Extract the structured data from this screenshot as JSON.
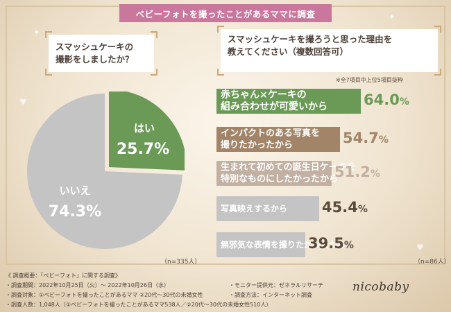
{
  "banner": "ベビーフォトを撮ったことがあるママに調査",
  "q_left": [
    "スマッシュケーキの",
    "撮影をしましたか？"
  ],
  "q_right": [
    "スマッシュケーキを撮ろうと思った理由を",
    "教えてください（複数回答可）"
  ],
  "note": "※全7項目中上位5項目抜粋",
  "colors": {
    "green": "#6a9a56",
    "brown": "#a28468",
    "beige": "#c2b0a2",
    "gray": "#c4c4c4",
    "banner": "#c9779c"
  },
  "chart_data": [
    {
      "type": "pie",
      "title": "スマッシュケーキの撮影をしましたか？",
      "slices": [
        {
          "label": "はい",
          "value": 25.7,
          "display": "25.7%"
        },
        {
          "label": "いいえ",
          "value": 74.3,
          "display": "74.3%"
        }
      ],
      "n": "（n=335人）"
    },
    {
      "type": "bar",
      "title": "スマッシュケーキを撮ろうと思った理由を教えてください（複数回答可）",
      "categories": [
        [
          "赤ちゃん×ケーキの",
          "組み合わせが可愛いから"
        ],
        [
          "インパクトのある写真を",
          "撮りたかったから"
        ],
        [
          "生まれて初めての誕生日ケーキを",
          "特別なものにしたかったから"
        ],
        [
          "写真映えするから"
        ],
        [
          "無邪気な表情を撮りたかったから"
        ]
      ],
      "values": [
        64.0,
        54.7,
        51.2,
        45.4,
        39.5
      ],
      "value_labels": [
        {
          "num": "64.0",
          "pct": "%"
        },
        {
          "num": "54.7",
          "pct": "%"
        },
        {
          "num": "51.2",
          "pct": "%"
        },
        {
          "num": "45.4",
          "pct": "%"
        },
        {
          "num": "39.5",
          "pct": "%"
        }
      ],
      "xlim": [
        0,
        100
      ],
      "n": "（n=86人）"
    }
  ],
  "footer": {
    "heading": "《 調査概要：「ベビーフォト」に関する調査》",
    "period": "・調査期間：2022年10月25日（火）～ 2022年10月26日（水）",
    "target": "・調査対象：①ベビーフォトを撮ったことがあるママ ②20代～30代の未婚女性",
    "count": "・調査人数：1,048人（①ベビーフォトを撮ったことがあるママ538人／②20代～30代の未婚女性510人）",
    "provider": "・モニター提供元：ゼネラルリサーチ",
    "method": "・調査方法：インターネット調査"
  },
  "logo": "nicobaby"
}
